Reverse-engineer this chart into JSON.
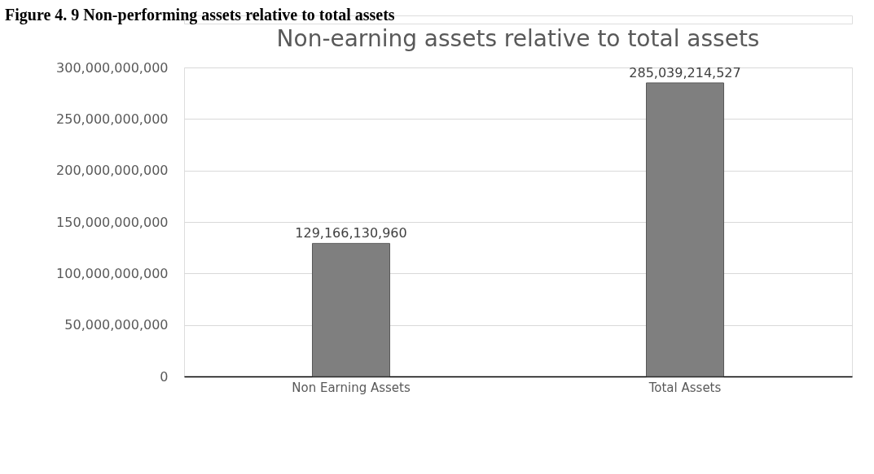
{
  "chart_data": {
    "type": "bar",
    "title": "Non-earning assets relative to total assets",
    "annotations": [
      "Figure 4. 9 Non-performing assets relative to total assets"
    ],
    "categories": [
      "Non Earning Assets",
      "Total Assets"
    ],
    "values": [
      129166130960,
      285039214527
    ],
    "color": "#7f7f7f",
    "ylim": [
      0,
      300000000000
    ],
    "yticks": [
      {
        "value": 0,
        "label": "0"
      },
      {
        "value": 50000000000,
        "label": "50,000,000,000"
      },
      {
        "value": 100000000000,
        "label": "100,000,000,000"
      },
      {
        "value": 150000000000,
        "label": "150,000,000,000"
      },
      {
        "value": 200000000000,
        "label": "200,000,000,000"
      },
      {
        "value": 250000000000,
        "label": "250,000,000,000"
      },
      {
        "value": 300000000000,
        "label": "300,000,000,000"
      }
    ],
    "grid": "y",
    "value_labels": [
      "129,166,130,960",
      "285,039,214,527"
    ]
  }
}
